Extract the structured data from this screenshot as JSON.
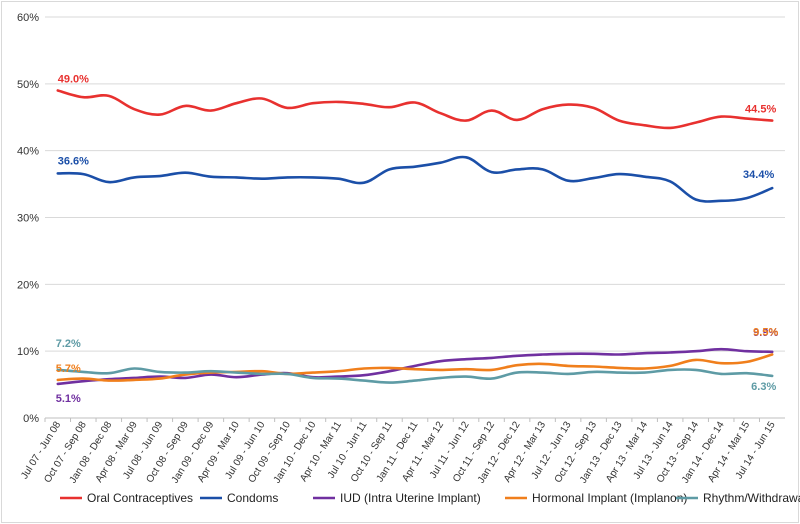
{
  "chart_data": {
    "type": "line",
    "title": "",
    "xlabel": "",
    "ylabel": "",
    "ylim": [
      0,
      60
    ],
    "yticks": [
      "0%",
      "10%",
      "20%",
      "30%",
      "40%",
      "50%",
      "60%"
    ],
    "grid": true,
    "legend_position": "bottom",
    "categories": [
      "Jul 07 - Jun 08",
      "Oct 07 - Sep 08",
      "Jan 08 - Dec 08",
      "Apr 08 - Mar 09",
      "Jul 08 - Jun 09",
      "Oct 08 - Sep 09",
      "Jan 09 - Dec 09",
      "Apr 09 - Mar 10",
      "Jul 09 - Jun 10",
      "Oct 09 - Sep 10",
      "Jan 10 - Dec 10",
      "Apr 10 - Mar 11",
      "Jul 10 - Jun 11",
      "Oct 10 - Sep 11",
      "Jan 11 - Dec 11",
      "Apr 11 - Mar 12",
      "Jul 11 - Jun 12",
      "Oct 11 - Sep 12",
      "Jan 12 - Dec 12",
      "Apr 12 - Mar 13",
      "Jul 12 - Jun 13",
      "Oct 12 - Sep 13",
      "Jan 13 - Dec 13",
      "Apr 13 - Mar 14",
      "Jul 13 - Jun 14",
      "Oct 13 - Sep 14",
      "Jan 14 - Dec 14",
      "Apr 14 - Mar 15",
      "Jul 14 - Jun 15"
    ],
    "series": [
      {
        "name": "Oral Contraceptives",
        "color": "#e8312f",
        "values": [
          49.0,
          48.0,
          48.2,
          46.2,
          45.4,
          46.7,
          46.0,
          47.1,
          47.8,
          46.4,
          47.1,
          47.3,
          47.0,
          46.5,
          47.2,
          45.6,
          44.5,
          46.0,
          44.6,
          46.2,
          46.9,
          46.4,
          44.5,
          43.8,
          43.4,
          44.2,
          45.1,
          44.8,
          44.5
        ],
        "labels": [
          {
            "index": 0,
            "text": "49.0%"
          },
          {
            "index": 28,
            "text": "44.5%"
          }
        ]
      },
      {
        "name": "Condoms",
        "color": "#1b4fa8",
        "values": [
          36.6,
          36.5,
          35.3,
          36.0,
          36.2,
          36.7,
          36.1,
          36.0,
          35.8,
          36.0,
          36.0,
          35.8,
          35.2,
          37.2,
          37.6,
          38.2,
          39.0,
          36.8,
          37.2,
          37.2,
          35.5,
          35.9,
          36.5,
          36.1,
          35.4,
          32.7,
          32.5,
          32.9,
          34.4
        ],
        "labels": [
          {
            "index": 0,
            "text": "36.6%"
          },
          {
            "index": 28,
            "text": "34.4%"
          }
        ]
      },
      {
        "name": "IUD (Intra Uterine Implant)",
        "color": "#7030a0",
        "values": [
          5.1,
          5.5,
          5.8,
          6.0,
          6.2,
          6.0,
          6.5,
          6.1,
          6.5,
          6.7,
          6.1,
          6.2,
          6.4,
          7.0,
          7.8,
          8.5,
          8.8,
          9.0,
          9.3,
          9.5,
          9.6,
          9.6,
          9.5,
          9.7,
          9.8,
          10.0,
          10.3,
          10.0,
          9.9
        ],
        "labels": [
          {
            "index": 0,
            "text": "5.1%"
          },
          {
            "index": 28,
            "text": "9.9%"
          }
        ]
      },
      {
        "name": "Hormonal Implant (Implanon)",
        "color": "#f07f1c",
        "values": [
          5.7,
          5.9,
          5.6,
          5.7,
          5.9,
          6.5,
          6.8,
          6.9,
          7.0,
          6.6,
          6.8,
          7.0,
          7.4,
          7.5,
          7.3,
          7.2,
          7.3,
          7.2,
          7.9,
          8.1,
          7.8,
          7.7,
          7.5,
          7.4,
          7.8,
          8.7,
          8.2,
          8.4,
          9.5
        ],
        "labels": [
          {
            "index": 0,
            "text": "5.7%"
          },
          {
            "index": 28,
            "text": "9.5%"
          }
        ]
      },
      {
        "name": "Rhythm/Withdrawal",
        "color": "#5e9ba5",
        "values": [
          7.2,
          6.9,
          6.7,
          7.4,
          6.9,
          6.8,
          7.0,
          6.8,
          6.6,
          6.6,
          6.0,
          5.9,
          5.6,
          5.3,
          5.6,
          6.0,
          6.2,
          5.9,
          6.8,
          6.8,
          6.6,
          6.9,
          6.8,
          6.8,
          7.2,
          7.2,
          6.6,
          6.7,
          6.3
        ],
        "labels": [
          {
            "index": 0,
            "text": "7.2%"
          },
          {
            "index": 28,
            "text": "6.3%"
          }
        ]
      }
    ]
  }
}
